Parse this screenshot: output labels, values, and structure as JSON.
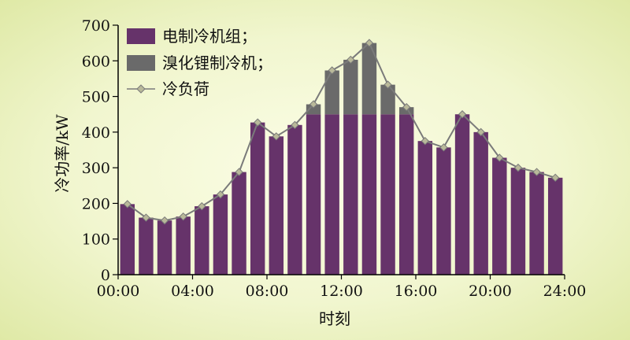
{
  "colors": {
    "chiller": "#66336a",
    "absorption": "#6a6a6a",
    "load_line": "#7a7a7a",
    "load_marker": "#b9b99a",
    "axis": "#000000"
  },
  "chart_data": {
    "type": "bar",
    "subtype": "stacked bar with line overlay",
    "title": "",
    "xlabel": "时刻",
    "ylabel": "冷功率/kW",
    "xlim_hours": [
      0,
      24
    ],
    "ylim": [
      0,
      700
    ],
    "x_ticks": [
      "00:00",
      "04:00",
      "08:00",
      "12:00",
      "16:00",
      "20:00",
      "24:00"
    ],
    "y_ticks": [
      "0",
      "100",
      "200",
      "300",
      "400",
      "500",
      "600",
      "700"
    ],
    "grid": false,
    "legend_position": "top-left",
    "x_hours": [
      0.5,
      1.5,
      2.5,
      3.5,
      4.5,
      5.5,
      6.5,
      7.5,
      8.5,
      9.5,
      10.5,
      11.5,
      12.5,
      13.5,
      14.5,
      15.5,
      16.5,
      17.5,
      18.5,
      19.5,
      20.5,
      21.5,
      22.5,
      23.5
    ],
    "series": [
      {
        "name": "电制冷机组；",
        "kind": "bar",
        "values": [
          198,
          160,
          152,
          163,
          192,
          225,
          288,
          427,
          388,
          420,
          450,
          450,
          450,
          450,
          450,
          450,
          375,
          357,
          450,
          400,
          328,
          300,
          288,
          272
        ]
      },
      {
        "name": "溴化锂制冷机；",
        "kind": "bar",
        "values": [
          0,
          0,
          0,
          0,
          0,
          0,
          0,
          0,
          0,
          0,
          28,
          123,
          153,
          200,
          83,
          20,
          0,
          0,
          0,
          0,
          0,
          0,
          0,
          0
        ]
      },
      {
        "name": "冷负荷",
        "kind": "line",
        "values": [
          198,
          160,
          152,
          163,
          192,
          225,
          288,
          427,
          388,
          420,
          478,
          573,
          603,
          650,
          533,
          470,
          375,
          357,
          450,
          400,
          328,
          300,
          288,
          272
        ]
      }
    ]
  }
}
